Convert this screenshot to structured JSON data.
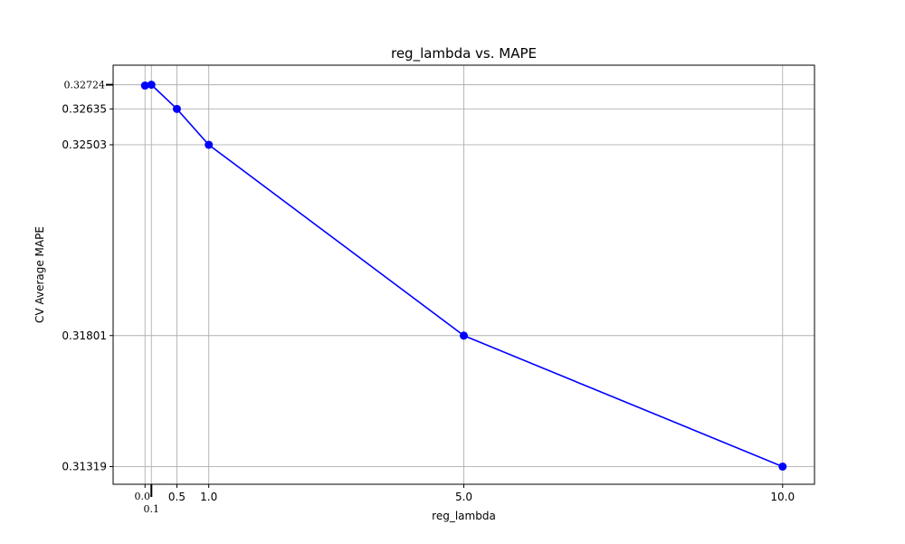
{
  "chart_data": {
    "type": "line",
    "title": "reg_lambda vs. MAPE",
    "xlabel": "reg_lambda",
    "ylabel": "CV Average MAPE",
    "x": [
      0.0,
      0.1,
      0.5,
      1.0,
      5.0,
      10.0
    ],
    "series": [
      {
        "values": [
          0.32721,
          0.32724,
          0.32635,
          0.32503,
          0.31801,
          0.31319
        ],
        "color": "#0000ff",
        "marker": "circle"
      }
    ],
    "xticks": [
      0.0,
      0.1,
      0.5,
      1.0,
      5.0,
      10.0
    ],
    "xtick_labels": [
      "0.0",
      "0.1",
      "0.5",
      "1.0",
      "5.0",
      "10.0"
    ],
    "yticks": [
      0.31319,
      0.31801,
      0.32503,
      0.32635,
      0.32724
    ],
    "ytick_labels": [
      "0.31319",
      "0.31801",
      "0.32503",
      "0.32635",
      "0.32724"
    ],
    "xlim": [
      -0.5,
      10.5
    ],
    "ylim": [
      0.31254,
      0.32796
    ],
    "grid": true,
    "legend": false
  }
}
